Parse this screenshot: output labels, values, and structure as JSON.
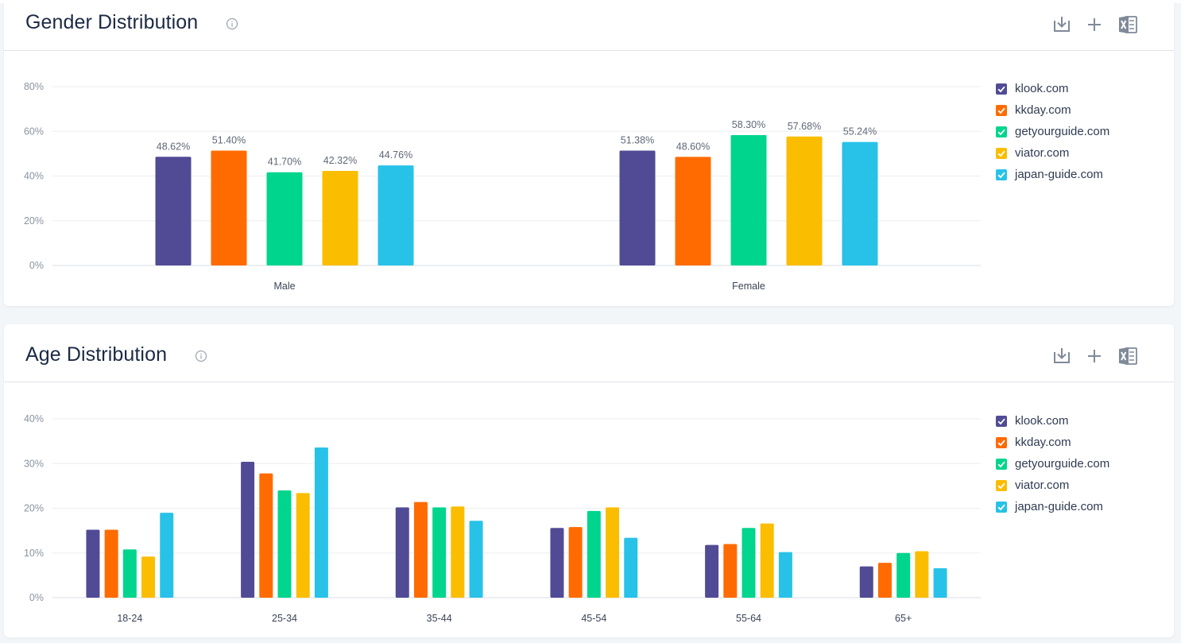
{
  "legend": [
    {
      "name": "klook.com",
      "color": "#514b95"
    },
    {
      "name": "kkday.com",
      "color": "#ff6b00"
    },
    {
      "name": "getyourguide.com",
      "color": "#00d58d"
    },
    {
      "name": "viator.com",
      "color": "#fbbd00"
    },
    {
      "name": "japan-guide.com",
      "color": "#28c2e8"
    }
  ],
  "gender": {
    "title": "Gender Distribution",
    "icons": {
      "info": "info-icon",
      "download": "download-icon",
      "add": "plus-icon",
      "excel": "excel-icon"
    }
  },
  "age": {
    "title": "Age Distribution",
    "icons": {
      "info": "info-icon",
      "download": "download-icon",
      "add": "plus-icon",
      "excel": "excel-icon"
    }
  },
  "chart_data": [
    {
      "type": "bar",
      "title": "Gender Distribution",
      "categories": [
        "Male",
        "Female"
      ],
      "ylim": [
        0,
        80
      ],
      "yticks": [
        "0%",
        "20%",
        "40%",
        "60%",
        "80%"
      ],
      "grid": true,
      "legend_position": "right",
      "show_data_labels": true,
      "series": [
        {
          "name": "klook.com",
          "values": [
            48.62,
            51.38
          ],
          "labels": [
            "48.62%",
            "51.38%"
          ]
        },
        {
          "name": "kkday.com",
          "values": [
            51.4,
            48.6
          ],
          "labels": [
            "51.40%",
            "48.60%"
          ]
        },
        {
          "name": "getyourguide.com",
          "values": [
            41.7,
            58.3
          ],
          "labels": [
            "41.70%",
            "58.30%"
          ]
        },
        {
          "name": "viator.com",
          "values": [
            42.32,
            57.68
          ],
          "labels": [
            "42.32%",
            "57.68%"
          ]
        },
        {
          "name": "japan-guide.com",
          "values": [
            44.76,
            55.24
          ],
          "labels": [
            "44.76%",
            "55.24%"
          ]
        }
      ]
    },
    {
      "type": "bar",
      "title": "Age Distribution",
      "categories": [
        "18-24",
        "25-34",
        "35-44",
        "45-54",
        "55-64",
        "65+"
      ],
      "ylim": [
        0,
        40
      ],
      "yticks": [
        "0%",
        "10%",
        "20%",
        "30%",
        "40%"
      ],
      "grid": true,
      "legend_position": "right",
      "show_data_labels": false,
      "series": [
        {
          "name": "klook.com",
          "values": [
            15.2,
            30.4,
            20.2,
            15.6,
            11.8,
            7.0
          ]
        },
        {
          "name": "kkday.com",
          "values": [
            15.2,
            27.8,
            21.4,
            15.8,
            12.0,
            7.8
          ]
        },
        {
          "name": "getyourguide.com",
          "values": [
            10.8,
            24.0,
            20.2,
            19.4,
            15.6,
            10.0
          ]
        },
        {
          "name": "viator.com",
          "values": [
            9.2,
            23.4,
            20.4,
            20.2,
            16.6,
            10.4
          ]
        },
        {
          "name": "japan-guide.com",
          "values": [
            19.0,
            33.6,
            17.2,
            13.4,
            10.2,
            6.6
          ]
        }
      ]
    }
  ]
}
